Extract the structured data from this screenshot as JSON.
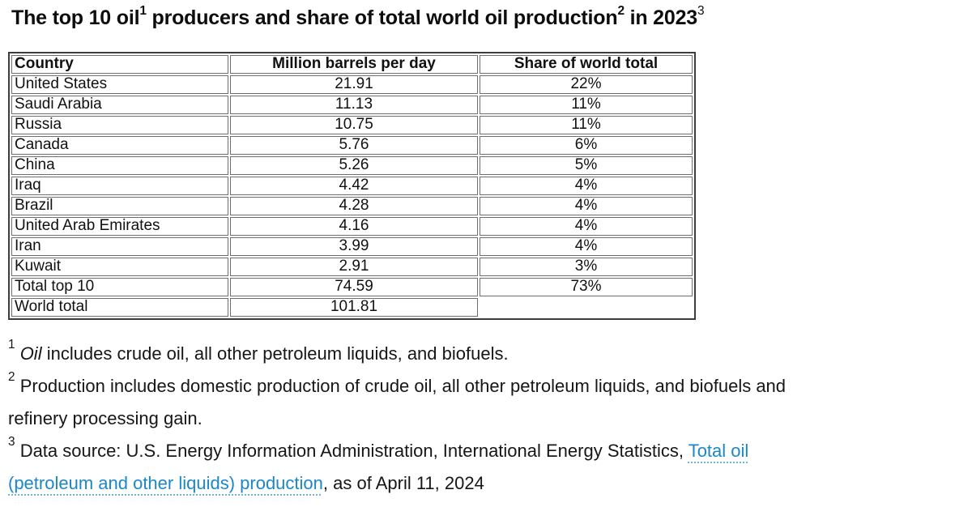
{
  "title": {
    "part1": "The top 10 oil",
    "sup1": "1",
    "part2": " producers and share of total world oil production",
    "sup2": "2",
    "part3": " in 2023",
    "sup3": "3"
  },
  "table": {
    "headers": [
      "Country",
      "Million barrels per day",
      "Share of world total"
    ],
    "rows": [
      {
        "country": "United States",
        "mbpd": "21.91",
        "share": "22%"
      },
      {
        "country": "Saudi Arabia",
        "mbpd": "11.13",
        "share": "11%"
      },
      {
        "country": "Russia",
        "mbpd": "10.75",
        "share": "11%"
      },
      {
        "country": "Canada",
        "mbpd": "5.76",
        "share": "6%"
      },
      {
        "country": "China",
        "mbpd": "5.26",
        "share": "5%"
      },
      {
        "country": "Iraq",
        "mbpd": "4.42",
        "share": "4%"
      },
      {
        "country": "Brazil",
        "mbpd": "4.28",
        "share": "4%"
      },
      {
        "country": "United Arab Emirates",
        "mbpd": "4.16",
        "share": "4%"
      },
      {
        "country": "Iran",
        "mbpd": "3.99",
        "share": "4%"
      },
      {
        "country": "Kuwait",
        "mbpd": "2.91",
        "share": "3%"
      },
      {
        "country": "Total top 10",
        "mbpd": "74.59",
        "share": "73%"
      },
      {
        "country": "World total",
        "mbpd": "101.81",
        "share": ""
      }
    ]
  },
  "footnotes": {
    "fn1": {
      "marker": "1",
      "italic": "Oil",
      "rest": " includes crude oil, all other petroleum liquids, and biofuels."
    },
    "fn2": {
      "marker": "2",
      "line1": "Production includes domestic production of crude oil, all other petroleum liquids, and biofuels and",
      "line2": "refinery processing gain."
    },
    "fn3": {
      "marker": "3",
      "lead": "Data source: U.S. Energy Information Administration, International Energy Statistics, ",
      "link_line1": "Total oil",
      "link_line2": "(petroleum and other liquids) production",
      "suffix": ", as of April 11, 2024"
    }
  },
  "colors": {
    "link": "#1c87c8",
    "link_underline": "#72b5de",
    "table_border_outer": "#3d3d3d",
    "table_border_cell": "#6e6e6e"
  },
  "chart_data": {
    "type": "table",
    "title": "The top 10 oil producers and share of total world oil production in 2023",
    "columns": [
      "Country",
      "Million barrels per day",
      "Share of world total"
    ],
    "rows": [
      [
        "United States",
        21.91,
        "22%"
      ],
      [
        "Saudi Arabia",
        11.13,
        "11%"
      ],
      [
        "Russia",
        10.75,
        "11%"
      ],
      [
        "Canada",
        5.76,
        "6%"
      ],
      [
        "China",
        5.26,
        "5%"
      ],
      [
        "Iraq",
        4.42,
        "4%"
      ],
      [
        "Brazil",
        4.28,
        "4%"
      ],
      [
        "United Arab Emirates",
        4.16,
        "4%"
      ],
      [
        "Iran",
        3.99,
        "4%"
      ],
      [
        "Kuwait",
        2.91,
        "3%"
      ],
      [
        "Total top 10",
        74.59,
        "73%"
      ],
      [
        "World total",
        101.81,
        null
      ]
    ]
  }
}
